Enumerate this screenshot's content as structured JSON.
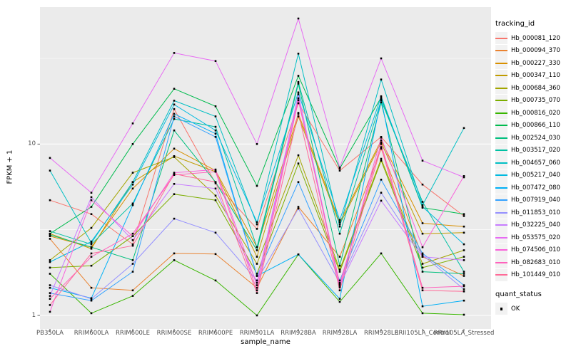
{
  "figure": {
    "background": "#FFFFFF"
  },
  "panel": {
    "bg": "#EBEBEB",
    "grid": "#FFFFFF",
    "tick_color": "#333333",
    "axis_text_color": "#4D4D4D",
    "point_color": "#000000"
  },
  "axes": {
    "x_title": "sample_name",
    "y_title": "FPKM + 1",
    "y_tick_labels": [
      "1",
      "10"
    ],
    "y_tick_values": [
      1,
      10
    ]
  },
  "legend": {
    "color_title": "tracking_id",
    "shape_title": "quant_status",
    "key_bg": "#F2F2F2",
    "shape_items": [
      {
        "label": "OK",
        "marker": "black-square"
      }
    ]
  },
  "chart_data": {
    "type": "line",
    "title": "",
    "xlabel": "sample_name",
    "ylabel": "FPKM + 1",
    "y_scale": "log10",
    "ylim": [
      0.83,
      63
    ],
    "y_major_gridlines": [
      1,
      10
    ],
    "y_minor_gridlines": [
      3.162,
      31.62
    ],
    "grid": "on",
    "legend_position": "right",
    "point_marker": "small black square (quant_status = OK)",
    "x_categories": [
      "PB350LA",
      "RRIM600LA",
      "RRIM600LE",
      "RRIM600SE",
      "RRIM600PE",
      "RRIM901LA",
      "RRIM928BA",
      "RRIM928LA",
      "RRIM928LE",
      "RRII105LA_Control",
      "RRII105LA_Stressed"
    ],
    "series": [
      {
        "name": "Hb_000081_120",
        "color": "#F8766D",
        "values": [
          4.7,
          3.9,
          2.6,
          16.0,
          5.9,
          3.2,
          17.3,
          7.0,
          11.0,
          5.8,
          3.8
        ]
      },
      {
        "name": "Hb_000094_370",
        "color": "#EA8331",
        "values": [
          2.8,
          1.45,
          1.4,
          2.3,
          2.28,
          1.45,
          4.3,
          2.2,
          9.4,
          2.2,
          1.7
        ]
      },
      {
        "name": "Hb_000227_330",
        "color": "#D89000",
        "values": [
          2.9,
          2.5,
          5.5,
          9.4,
          7.0,
          2.5,
          15.0,
          3.5,
          10.5,
          3.45,
          3.3
        ]
      },
      {
        "name": "Hb_000347_110",
        "color": "#C09B00",
        "values": [
          3.0,
          2.45,
          6.0,
          8.5,
          6.9,
          2.2,
          14.5,
          3.4,
          10.2,
          3.0,
          3.04
        ]
      },
      {
        "name": "Hb_000684_360",
        "color": "#A3A500",
        "values": [
          2.1,
          3.24,
          6.8,
          8.4,
          5.0,
          2.0,
          8.6,
          1.85,
          8.2,
          2.0,
          2.4
        ]
      },
      {
        "name": "Hb_000735_070",
        "color": "#7CAE00",
        "values": [
          1.9,
          1.95,
          2.9,
          5.1,
          4.7,
          1.75,
          7.7,
          1.8,
          8.0,
          1.9,
          2.2
        ]
      },
      {
        "name": "Hb_000816_020",
        "color": "#39B600",
        "values": [
          1.75,
          1.03,
          1.3,
          2.1,
          1.6,
          1.0,
          2.27,
          1.2,
          2.3,
          1.03,
          1.01
        ]
      },
      {
        "name": "Hb_000866_110",
        "color": "#00BB4E",
        "values": [
          3.0,
          4.3,
          10.0,
          21.0,
          16.6,
          5.7,
          25.0,
          7.2,
          18.7,
          4.25,
          3.9
        ]
      },
      {
        "name": "Hb_002524_030",
        "color": "#00BF7D",
        "values": [
          2.95,
          2.5,
          2.1,
          12.0,
          6.0,
          2.4,
          22.5,
          1.95,
          17.5,
          1.8,
          1.75
        ]
      },
      {
        "name": "Hb_003517_020",
        "color": "#00C1A3",
        "values": [
          3.1,
          2.6,
          4.5,
          14.0,
          12.6,
          2.5,
          23.0,
          3.0,
          18.0,
          4.6,
          1.8
        ]
      },
      {
        "name": "Hb_004657_060",
        "color": "#00BFC4",
        "values": [
          7.0,
          2.65,
          6.0,
          17.9,
          14.5,
          3.4,
          33.7,
          3.3,
          23.8,
          4.4,
          12.4
        ]
      },
      {
        "name": "Hb_005217_040",
        "color": "#00BAE0",
        "values": [
          2.05,
          2.7,
          5.8,
          17.0,
          12.0,
          3.5,
          20.0,
          3.6,
          19.0,
          4.3,
          2.6
        ]
      },
      {
        "name": "Hb_007472_080",
        "color": "#00B0F6",
        "values": [
          1.45,
          1.26,
          4.4,
          15.0,
          11.5,
          1.7,
          2.27,
          1.25,
          18.3,
          1.13,
          1.22
        ]
      },
      {
        "name": "Hb_007919_040",
        "color": "#35A2FF",
        "values": [
          1.35,
          1.22,
          1.8,
          14.5,
          11.0,
          1.7,
          6.0,
          1.6,
          6.2,
          2.3,
          1.5
        ]
      },
      {
        "name": "Hb_011853_010",
        "color": "#9590FF",
        "values": [
          1.5,
          1.25,
          2.0,
          3.67,
          3.04,
          1.6,
          4.2,
          1.55,
          5.2,
          2.25,
          1.42
        ]
      },
      {
        "name": "Hb_032225_040",
        "color": "#C77CFF",
        "values": [
          1.3,
          4.9,
          2.75,
          5.85,
          5.5,
          1.55,
          19.5,
          1.5,
          4.67,
          2.2,
          2.1
        ]
      },
      {
        "name": "Hb_053575_020",
        "color": "#E76BF3",
        "values": [
          8.3,
          5.2,
          13.2,
          34.0,
          30.5,
          10.0,
          54.0,
          7.3,
          31.6,
          8.0,
          6.4
        ]
      },
      {
        "name": "Hb_074506_010",
        "color": "#FA62DB",
        "values": [
          1.05,
          4.7,
          2.9,
          6.8,
          7.1,
          1.5,
          18.5,
          1.46,
          10.9,
          2.5,
          6.5
        ]
      },
      {
        "name": "Hb_082683_010",
        "color": "#FF62BC",
        "values": [
          1.25,
          2.2,
          3.0,
          6.6,
          6.9,
          1.4,
          18.0,
          1.53,
          10.0,
          1.45,
          1.48
        ]
      },
      {
        "name": "Hb_101449_010",
        "color": "#FF6A98",
        "values": [
          1.15,
          2.3,
          2.55,
          6.7,
          6.0,
          1.35,
          15.2,
          1.4,
          9.6,
          1.4,
          1.38
        ]
      }
    ]
  }
}
